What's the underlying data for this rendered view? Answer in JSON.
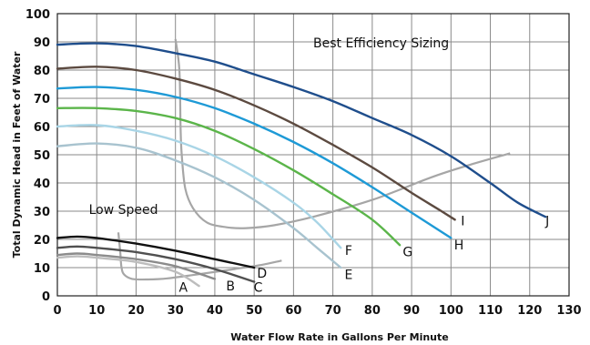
{
  "chart_data": {
    "type": "line",
    "title": "",
    "xlabel": "Water Flow Rate in Gallons Per Minute",
    "ylabel": "Total Dynamic Head in Feet of Water",
    "xlim": [
      0,
      130
    ],
    "ylim": [
      0,
      100
    ],
    "x_ticks": [
      "0",
      "10",
      "20",
      "30",
      "40",
      "50",
      "60",
      "70",
      "80",
      "90",
      "100",
      "110",
      "120",
      "130"
    ],
    "y_ticks": [
      "0",
      "10",
      "20",
      "30",
      "40",
      "50",
      "60",
      "70",
      "80",
      "90",
      "100"
    ],
    "grid": true,
    "annotations": [
      {
        "text": "Best Efficiency Sizing",
        "x": 65,
        "y": 88
      },
      {
        "text": "Low Speed",
        "x": 8,
        "y": 29
      }
    ],
    "series": [
      {
        "name": "J",
        "color": "#1f4e8c",
        "label_pos": [
          124.5,
          25
        ],
        "points": [
          [
            0,
            89
          ],
          [
            10,
            89.5
          ],
          [
            20,
            88.5
          ],
          [
            30,
            86
          ],
          [
            40,
            83
          ],
          [
            50,
            78.5
          ],
          [
            60,
            74
          ],
          [
            70,
            69
          ],
          [
            80,
            63
          ],
          [
            90,
            57
          ],
          [
            100,
            49.5
          ],
          [
            110,
            40
          ],
          [
            117,
            33
          ],
          [
            124,
            28
          ]
        ]
      },
      {
        "name": "I",
        "color": "#5c4a40",
        "label_pos": [
          103,
          25
        ],
        "points": [
          [
            0,
            80.5
          ],
          [
            10,
            81.2
          ],
          [
            20,
            80
          ],
          [
            30,
            77
          ],
          [
            40,
            73
          ],
          [
            50,
            67.5
          ],
          [
            60,
            61
          ],
          [
            70,
            53.5
          ],
          [
            80,
            45.5
          ],
          [
            90,
            36.5
          ],
          [
            97,
            30.5
          ],
          [
            101,
            27
          ]
        ]
      },
      {
        "name": "H",
        "color": "#1e9ad6",
        "label_pos": [
          102,
          16.5
        ],
        "points": [
          [
            0,
            73.5
          ],
          [
            10,
            74
          ],
          [
            20,
            73
          ],
          [
            30,
            70.5
          ],
          [
            40,
            66.5
          ],
          [
            50,
            61
          ],
          [
            60,
            54.5
          ],
          [
            70,
            47
          ],
          [
            80,
            38.5
          ],
          [
            90,
            29.5
          ],
          [
            100,
            20.5
          ]
        ]
      },
      {
        "name": "G",
        "color": "#5bb54a",
        "label_pos": [
          89,
          14
        ],
        "points": [
          [
            0,
            66.5
          ],
          [
            10,
            66.5
          ],
          [
            20,
            65.5
          ],
          [
            30,
            63
          ],
          [
            40,
            58.5
          ],
          [
            50,
            52
          ],
          [
            60,
            44.5
          ],
          [
            70,
            36
          ],
          [
            80,
            27
          ],
          [
            87,
            18
          ]
        ]
      },
      {
        "name": "F",
        "color": "#a9d5e6",
        "label_pos": [
          74,
          14.5
        ],
        "points": [
          [
            0,
            60
          ],
          [
            10,
            60.5
          ],
          [
            20,
            58.5
          ],
          [
            30,
            55
          ],
          [
            40,
            49.5
          ],
          [
            50,
            42
          ],
          [
            60,
            33
          ],
          [
            66,
            26
          ],
          [
            72,
            17
          ]
        ]
      },
      {
        "name": "E",
        "color": "#a8c3cf",
        "label_pos": [
          74,
          6
        ],
        "points": [
          [
            0,
            53
          ],
          [
            10,
            54
          ],
          [
            20,
            52.5
          ],
          [
            30,
            48
          ],
          [
            40,
            42
          ],
          [
            50,
            34
          ],
          [
            60,
            24
          ],
          [
            66,
            17
          ],
          [
            72,
            10
          ]
        ]
      },
      {
        "name": "D",
        "color": "#111111",
        "label_pos": [
          52,
          6.5
        ],
        "points": [
          [
            0,
            20.5
          ],
          [
            5,
            21
          ],
          [
            10,
            20.5
          ],
          [
            20,
            18.5
          ],
          [
            30,
            16
          ],
          [
            40,
            13
          ],
          [
            50,
            10
          ]
        ]
      },
      {
        "name": "C",
        "color": "#505050",
        "label_pos": [
          51,
          1.5
        ],
        "points": [
          [
            0,
            17
          ],
          [
            5,
            17.5
          ],
          [
            10,
            17
          ],
          [
            20,
            15.5
          ],
          [
            30,
            13
          ],
          [
            40,
            9.5
          ],
          [
            50,
            5
          ]
        ]
      },
      {
        "name": "B",
        "color": "#8c8c8c",
        "label_pos": [
          44,
          2
        ],
        "points": [
          [
            0,
            14.5
          ],
          [
            5,
            15
          ],
          [
            10,
            14.5
          ],
          [
            20,
            13
          ],
          [
            30,
            10.5
          ],
          [
            40,
            6
          ]
        ]
      },
      {
        "name": "A",
        "color": "#bdbdbd",
        "label_pos": [
          32,
          1.5
        ],
        "points": [
          [
            0,
            13.5
          ],
          [
            5,
            14
          ],
          [
            10,
            13.5
          ],
          [
            20,
            12
          ],
          [
            30,
            8.5
          ],
          [
            36,
            3.5
          ]
        ]
      }
    ],
    "efficiency_curves": [
      {
        "color": "#a6a6a6",
        "points": [
          [
            30,
            91
          ],
          [
            31,
            80
          ],
          [
            31.3,
            60
          ],
          [
            31.6,
            50
          ],
          [
            32.5,
            38
          ],
          [
            34.5,
            31
          ],
          [
            38,
            26
          ],
          [
            43,
            24.3
          ],
          [
            48,
            24
          ],
          [
            55,
            25
          ],
          [
            65,
            28
          ],
          [
            80,
            34
          ],
          [
            95,
            42
          ],
          [
            105,
            46.5
          ],
          [
            115,
            50.5
          ]
        ]
      },
      {
        "color": "#a6a6a6",
        "points": [
          [
            15.5,
            22.5
          ],
          [
            16,
            15
          ],
          [
            16.3,
            10
          ],
          [
            17,
            7.5
          ],
          [
            19,
            6
          ],
          [
            23,
            5.8
          ],
          [
            28,
            6.2
          ],
          [
            35,
            7.5
          ],
          [
            45,
            9.5
          ],
          [
            52,
            11
          ],
          [
            57,
            12.5
          ]
        ]
      }
    ]
  }
}
